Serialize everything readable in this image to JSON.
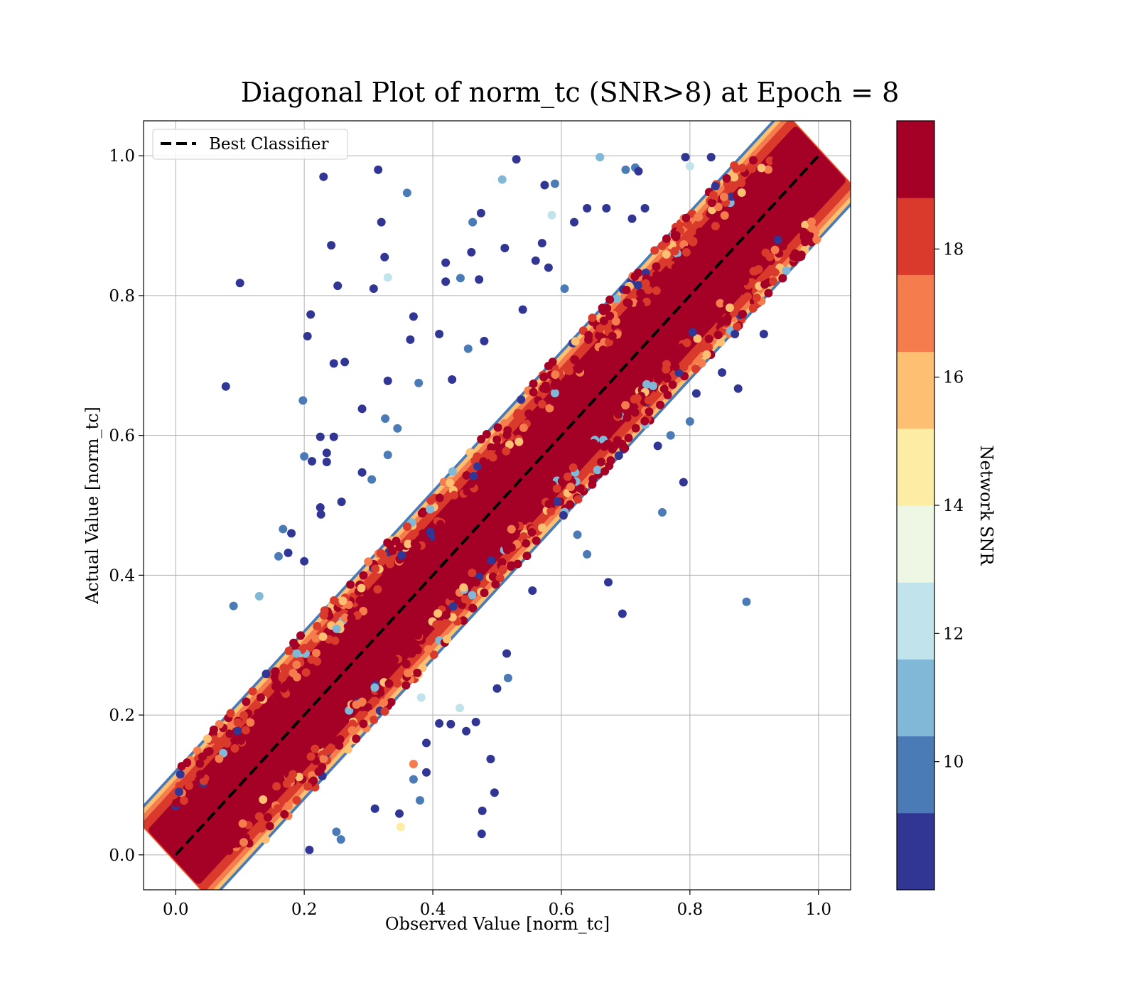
{
  "chart_data": {
    "type": "scatter",
    "title": "Diagonal Plot of norm_tc (SNR>8) at Epoch = 8",
    "xlabel": "Observed Value [norm_tc]",
    "ylabel": "Actual Value [norm_tc]",
    "xlim": [
      -0.05,
      1.05
    ],
    "ylim": [
      -0.05,
      1.05
    ],
    "xticks": [
      "0.0",
      "0.2",
      "0.4",
      "0.6",
      "0.8",
      "1.0"
    ],
    "yticks": [
      "0.0",
      "0.2",
      "0.4",
      "0.6",
      "0.8",
      "1.0"
    ],
    "grid": true,
    "legend": {
      "placement": "upper-left",
      "entries": [
        "Best Classifier"
      ]
    },
    "reference_line": {
      "name": "Best Classifier",
      "x": [
        0,
        1
      ],
      "y": [
        0,
        1
      ],
      "style": "dashed",
      "color": "#000000"
    },
    "colorbar": {
      "label": "Network SNR",
      "range": [
        8,
        20
      ],
      "ticks": [
        "10",
        "12",
        "14",
        "16",
        "18"
      ],
      "bins": [
        {
          "from": 8,
          "to": 9.2,
          "color": "#313695"
        },
        {
          "from": 9.2,
          "to": 10.4,
          "color": "#4a7bb7"
        },
        {
          "from": 10.4,
          "to": 11.6,
          "color": "#82b8d7"
        },
        {
          "from": 11.6,
          "to": 12.8,
          "color": "#c0e3ec"
        },
        {
          "from": 12.8,
          "to": 14.0,
          "color": "#eef7e3"
        },
        {
          "from": 14.0,
          "to": 15.2,
          "color": "#fdeca3"
        },
        {
          "from": 15.2,
          "to": 16.4,
          "color": "#fdbf71"
        },
        {
          "from": 16.4,
          "to": 17.6,
          "color": "#f57d4d"
        },
        {
          "from": 17.6,
          "to": 18.8,
          "color": "#da3a2c"
        },
        {
          "from": 18.8,
          "to": 20.0,
          "color": "#a50026"
        }
      ]
    },
    "points": [
      [
        0.23,
        0.97,
        8.5
      ],
      [
        0.315,
        0.98,
        8.5
      ],
      [
        0.53,
        0.995,
        8.5
      ],
      [
        0.66,
        0.998,
        11.0
      ],
      [
        0.36,
        0.947,
        10.0
      ],
      [
        0.508,
        0.966,
        11.0
      ],
      [
        0.59,
        0.96,
        10.0
      ],
      [
        0.574,
        0.958,
        8.5
      ],
      [
        0.32,
        0.905,
        8.5
      ],
      [
        0.475,
        0.918,
        8.5
      ],
      [
        0.462,
        0.905,
        10.0
      ],
      [
        0.242,
        0.872,
        8.5
      ],
      [
        0.325,
        0.855,
        8.5
      ],
      [
        0.33,
        0.826,
        12.0
      ],
      [
        0.1,
        0.818,
        8.5
      ],
      [
        0.252,
        0.814,
        8.5
      ],
      [
        0.308,
        0.81,
        8.5
      ],
      [
        0.42,
        0.847,
        8.5
      ],
      [
        0.42,
        0.82,
        8.5
      ],
      [
        0.443,
        0.825,
        10.0
      ],
      [
        0.472,
        0.823,
        8.5
      ],
      [
        0.46,
        0.862,
        8.5
      ],
      [
        0.512,
        0.868,
        8.5
      ],
      [
        0.57,
        0.875,
        8.5
      ],
      [
        0.585,
        0.915,
        12.0
      ],
      [
        0.62,
        0.905,
        8.5
      ],
      [
        0.21,
        0.773,
        8.5
      ],
      [
        0.37,
        0.77,
        8.5
      ],
      [
        0.205,
        0.742,
        8.5
      ],
      [
        0.41,
        0.745,
        8.5
      ],
      [
        0.365,
        0.737,
        8.5
      ],
      [
        0.246,
        0.703,
        8.5
      ],
      [
        0.263,
        0.705,
        8.5
      ],
      [
        0.078,
        0.67,
        8.5
      ],
      [
        0.198,
        0.65,
        10.0
      ],
      [
        0.33,
        0.678,
        8.5
      ],
      [
        0.378,
        0.675,
        10.0
      ],
      [
        0.29,
        0.638,
        8.5
      ],
      [
        0.326,
        0.624,
        10.0
      ],
      [
        0.345,
        0.61,
        10.0
      ],
      [
        0.225,
        0.598,
        8.5
      ],
      [
        0.246,
        0.598,
        8.5
      ],
      [
        0.235,
        0.575,
        8.5
      ],
      [
        0.235,
        0.562,
        8.5
      ],
      [
        0.2,
        0.57,
        10.0
      ],
      [
        0.212,
        0.563,
        8.5
      ],
      [
        0.33,
        0.572,
        10.0
      ],
      [
        0.29,
        0.547,
        8.5
      ],
      [
        0.305,
        0.537,
        10.0
      ],
      [
        0.225,
        0.497,
        8.5
      ],
      [
        0.258,
        0.505,
        8.5
      ],
      [
        0.226,
        0.487,
        8.5
      ],
      [
        0.167,
        0.466,
        10.0
      ],
      [
        0.18,
        0.46,
        8.5
      ],
      [
        0.175,
        0.432,
        8.5
      ],
      [
        0.16,
        0.427,
        10.0
      ],
      [
        0.2,
        0.42,
        8.5
      ],
      [
        0.09,
        0.356,
        10.0
      ],
      [
        0.13,
        0.37,
        11.0
      ],
      [
        0.875,
        0.667,
        8.5
      ],
      [
        0.79,
        0.533,
        8.5
      ],
      [
        0.757,
        0.49,
        10.0
      ],
      [
        0.673,
        0.39,
        8.5
      ],
      [
        0.695,
        0.345,
        8.5
      ],
      [
        0.888,
        0.362,
        10.0
      ],
      [
        0.64,
        0.43,
        10.0
      ],
      [
        0.625,
        0.458,
        10.0
      ],
      [
        0.555,
        0.378,
        8.5
      ],
      [
        0.515,
        0.288,
        8.5
      ],
      [
        0.517,
        0.253,
        10.0
      ],
      [
        0.5,
        0.238,
        8.5
      ],
      [
        0.382,
        0.225,
        12.0
      ],
      [
        0.442,
        0.21,
        12.0
      ],
      [
        0.41,
        0.188,
        8.5
      ],
      [
        0.428,
        0.187,
        8.5
      ],
      [
        0.467,
        0.19,
        8.5
      ],
      [
        0.452,
        0.177,
        8.5
      ],
      [
        0.39,
        0.16,
        8.5
      ],
      [
        0.37,
        0.13,
        17.0
      ],
      [
        0.39,
        0.118,
        8.5
      ],
      [
        0.37,
        0.108,
        10.0
      ],
      [
        0.49,
        0.137,
        8.5
      ],
      [
        0.496,
        0.089,
        8.5
      ],
      [
        0.38,
        0.078,
        10.0
      ],
      [
        0.477,
        0.063,
        8.5
      ],
      [
        0.476,
        0.03,
        8.5
      ],
      [
        0.31,
        0.066,
        8.5
      ],
      [
        0.348,
        0.059,
        8.5
      ],
      [
        0.35,
        0.04,
        15.0
      ],
      [
        0.25,
        0.033,
        10.0
      ],
      [
        0.257,
        0.022,
        10.0
      ],
      [
        0.208,
        0.007,
        8.5
      ],
      [
        0.7,
        0.98,
        10.0
      ],
      [
        0.715,
        0.983,
        10.0
      ],
      [
        0.72,
        0.978,
        8.5
      ],
      [
        0.793,
        0.998,
        8.5
      ],
      [
        0.833,
        0.998,
        8.5
      ],
      [
        0.8,
        0.985,
        12.0
      ],
      [
        0.64,
        0.925,
        8.5
      ],
      [
        0.67,
        0.925,
        8.5
      ],
      [
        0.73,
        0.925,
        8.5
      ],
      [
        0.71,
        0.91,
        8.5
      ],
      [
        0.56,
        0.85,
        8.5
      ],
      [
        0.58,
        0.84,
        8.5
      ],
      [
        0.605,
        0.81,
        10.0
      ],
      [
        0.54,
        0.78,
        8.5
      ],
      [
        0.48,
        0.735,
        8.5
      ],
      [
        0.455,
        0.724,
        10.0
      ],
      [
        0.43,
        0.68,
        8.5
      ],
      [
        0.915,
        0.745,
        8.5
      ],
      [
        0.87,
        0.745,
        8.5
      ],
      [
        0.85,
        0.69,
        8.5
      ],
      [
        0.81,
        0.66,
        8.5
      ],
      [
        0.8,
        0.62,
        10.0
      ],
      [
        0.77,
        0.6,
        10.0
      ],
      [
        0.75,
        0.585,
        8.5
      ]
    ]
  }
}
